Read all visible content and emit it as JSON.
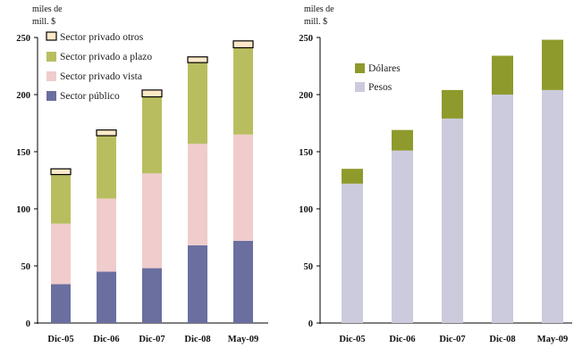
{
  "chart_data": [
    {
      "type": "bar",
      "stacked": true,
      "unit_label": [
        "miles de",
        "mill. $"
      ],
      "categories": [
        "Dic-05",
        "Dic-06",
        "Dic-07",
        "Dic-08",
        "May-09"
      ],
      "ylim": [
        0,
        250
      ],
      "yticks": [
        0,
        50,
        100,
        150,
        200,
        250
      ],
      "grid": false,
      "legend_position": "top-left",
      "series": [
        {
          "name": "Sector público",
          "color": "#6a6fa0",
          "values": [
            34,
            45,
            48,
            68,
            72
          ]
        },
        {
          "name": "Sector privado vista",
          "color": "#f0cccc",
          "values": [
            53,
            64,
            83,
            89,
            93
          ]
        },
        {
          "name": "Sector privado a plazo",
          "color": "#b8be60",
          "values": [
            43,
            55,
            67,
            71,
            76
          ]
        },
        {
          "name": "Sector privado otros",
          "color": "#fde9c8",
          "values": [
            5,
            5,
            6,
            5,
            6
          ]
        }
      ]
    },
    {
      "type": "bar",
      "stacked": true,
      "unit_label": [
        "miles de",
        "mill. $"
      ],
      "categories": [
        "Dic-05",
        "Dic-06",
        "Dic-07",
        "Dic-08",
        "May-09"
      ],
      "ylim": [
        0,
        250
      ],
      "yticks": [
        0,
        50,
        100,
        150,
        200,
        250
      ],
      "grid": false,
      "legend_position": "top-left",
      "series": [
        {
          "name": "Pesos",
          "color": "#cccbdd",
          "values": [
            122,
            151,
            179,
            200,
            204
          ]
        },
        {
          "name": "Dólares",
          "color": "#8e9a2c",
          "values": [
            13,
            18,
            25,
            34,
            44
          ]
        }
      ]
    }
  ]
}
